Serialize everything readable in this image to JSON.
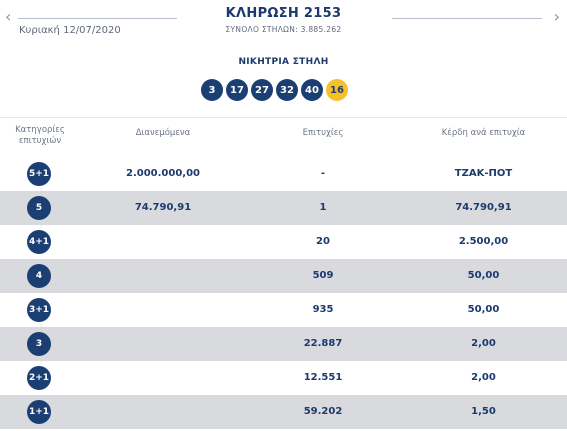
{
  "header": {
    "title": "ΚΛΗΡΩΣΗ 2153",
    "date": "Κυριακή 12/07/2020",
    "total_columns": "ΣΥΝΟΛΟ ΣΤΗΛΩΝ: 3.885.262",
    "prev_icon": "chevron-left-icon",
    "next_icon": "chevron-right-icon"
  },
  "winning": {
    "label": "ΝΙΚΗΤΡΙΑ ΣΤΗΛΗ",
    "numbers": [
      "3",
      "17",
      "27",
      "32",
      "40"
    ],
    "joker": "16",
    "joker_color": "#f5c02a",
    "ball_color": "#1c3f73"
  },
  "table": {
    "headers": {
      "category_line1": "Κατηγορίες",
      "category_line2": "επιτυχιών",
      "distributed": "Διανεμόμενα",
      "winners": "Επιτυχίες",
      "prize": "Κέρδη ανά επιτυχία"
    },
    "rows": [
      {
        "category": "5+1",
        "distributed": "2.000.000,00",
        "winners": "-",
        "prize": "ΤΖΑΚ-ΠΟΤ"
      },
      {
        "category": "5",
        "distributed": "74.790,91",
        "winners": "1",
        "prize": "74.790,91"
      },
      {
        "category": "4+1",
        "distributed": "",
        "winners": "20",
        "prize": "2.500,00"
      },
      {
        "category": "4",
        "distributed": "",
        "winners": "509",
        "prize": "50,00"
      },
      {
        "category": "3+1",
        "distributed": "",
        "winners": "935",
        "prize": "50,00"
      },
      {
        "category": "3",
        "distributed": "",
        "winners": "22.887",
        "prize": "2,00"
      },
      {
        "category": "2+1",
        "distributed": "",
        "winners": "12.551",
        "prize": "2,00"
      },
      {
        "category": "1+1",
        "distributed": "",
        "winners": "59.202",
        "prize": "1,50"
      }
    ]
  }
}
